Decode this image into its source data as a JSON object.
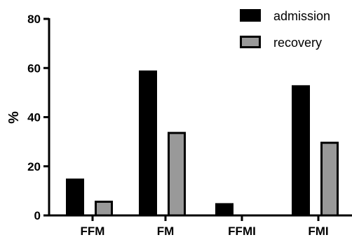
{
  "chart_data": {
    "type": "bar",
    "title": "",
    "xlabel": "",
    "ylabel": "%",
    "ylim": [
      0,
      80
    ],
    "yticks": [
      0,
      20,
      40,
      60,
      80
    ],
    "grid": false,
    "legend_position": "top-right",
    "categories": [
      "FFM",
      "FM",
      "FFMI",
      "FMI"
    ],
    "series": [
      {
        "name": "admission",
        "color": "#000000",
        "values": [
          15,
          59,
          5,
          53
        ]
      },
      {
        "name": "recovery",
        "color": "#999999",
        "values": [
          6,
          34,
          0,
          30
        ]
      }
    ]
  }
}
